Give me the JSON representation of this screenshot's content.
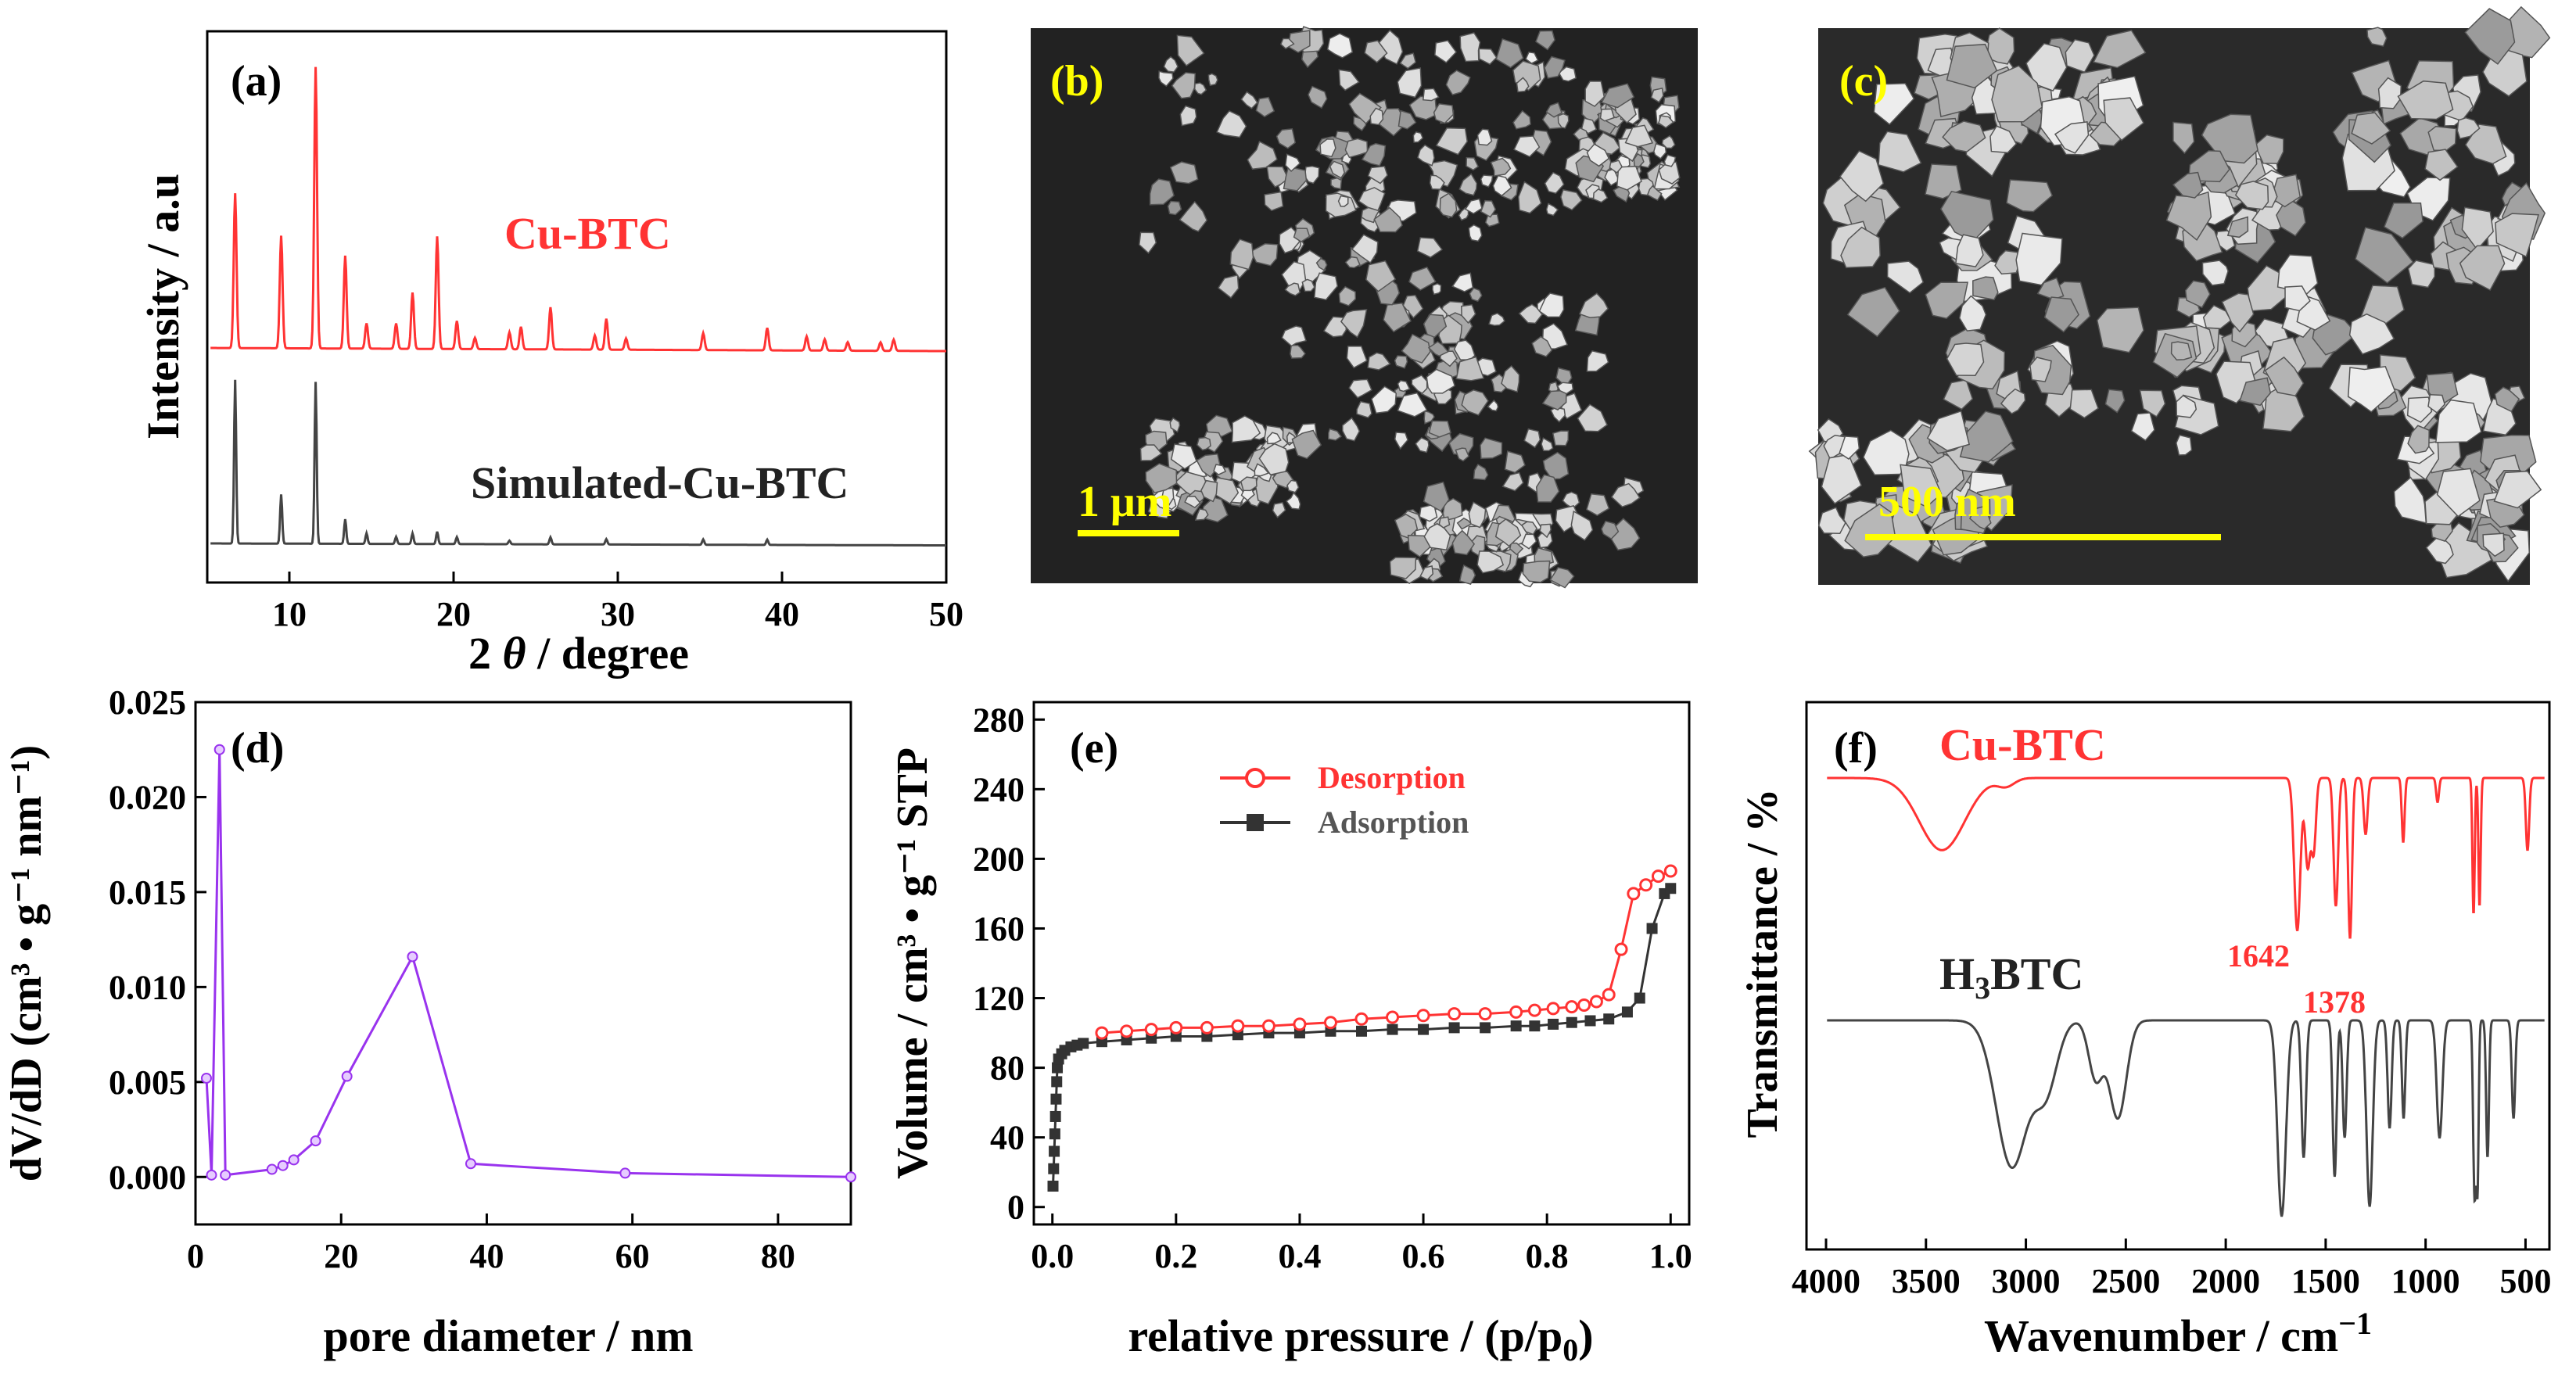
{
  "chart_data": [
    {
      "panel": "(a)",
      "type": "line",
      "xlabel_prefix": "2 ",
      "xlabel_symbol": "θ",
      "xlabel_suffix": " / degree",
      "ylabel": "Intensity / a.u",
      "xlim": [
        5,
        50
      ],
      "xticks": [
        "10",
        "20",
        "30",
        "40",
        "50"
      ],
      "series": [
        {
          "name": "Cu-BTC",
          "color": "#ff3333",
          "peaks": [
            [
              6.7,
              0.55
            ],
            [
              9.5,
              0.4
            ],
            [
              11.6,
              1.0
            ],
            [
              13.4,
              0.33
            ],
            [
              14.7,
              0.09
            ],
            [
              16.5,
              0.09
            ],
            [
              17.5,
              0.2
            ],
            [
              19.0,
              0.4
            ],
            [
              20.2,
              0.1
            ],
            [
              21.3,
              0.04
            ],
            [
              23.4,
              0.06
            ],
            [
              24.1,
              0.08
            ],
            [
              25.9,
              0.15
            ],
            [
              28.6,
              0.05
            ],
            [
              29.3,
              0.11
            ],
            [
              30.5,
              0.04
            ],
            [
              35.2,
              0.06
            ],
            [
              39.1,
              0.08
            ],
            [
              41.5,
              0.05
            ],
            [
              42.6,
              0.04
            ],
            [
              44.0,
              0.03
            ],
            [
              46.0,
              0.03
            ],
            [
              46.8,
              0.04
            ]
          ],
          "baseline": 0.0
        },
        {
          "name": "Simulated-Cu-BTC",
          "color": "#444444",
          "peaks": [
            [
              6.7,
              0.93
            ],
            [
              9.5,
              0.28
            ],
            [
              11.6,
              0.92
            ],
            [
              13.4,
              0.14
            ],
            [
              14.7,
              0.06
            ],
            [
              16.5,
              0.04
            ],
            [
              17.5,
              0.06
            ],
            [
              19.0,
              0.07
            ],
            [
              20.2,
              0.04
            ],
            [
              23.4,
              0.02
            ],
            [
              25.9,
              0.04
            ],
            [
              29.3,
              0.03
            ],
            [
              35.2,
              0.03
            ],
            [
              39.1,
              0.03
            ]
          ],
          "baseline": 0.0
        }
      ]
    },
    {
      "panel": "(d)",
      "type": "line",
      "xlabel": "pore diameter / nm",
      "ylabel": "dV/dD (cm³ • g⁻¹ nm⁻¹)",
      "xlim": [
        0,
        90
      ],
      "ylim": [
        -0.0025,
        0.025
      ],
      "xticks": [
        "0",
        "20",
        "40",
        "60",
        "80"
      ],
      "yticks": [
        "0.000",
        "0.005",
        "0.010",
        "0.015",
        "0.020",
        "0.025"
      ],
      "color": "#9933ee",
      "series": [
        {
          "name": "pore size distribution",
          "x": [
            1.5,
            2.2,
            3.3,
            4.1,
            10.5,
            12.0,
            13.5,
            16.5,
            20.8,
            29.8,
            37.8,
            59.0,
            90.0
          ],
          "y": [
            0.0052,
            0.0001,
            0.0225,
            0.0001,
            0.0004,
            0.0006,
            0.0009,
            0.0019,
            0.0053,
            0.0116,
            0.0007,
            0.0002,
            0.0
          ]
        }
      ]
    },
    {
      "panel": "(e)",
      "type": "line",
      "xlabel": "relative pressure / (p/p",
      "xlabel_sub": "0",
      "xlabel_close": ")",
      "ylabel": "Volume / cm³ • g⁻¹ STP",
      "xlim": [
        -0.03,
        1.03
      ],
      "ylim": [
        -10,
        290
      ],
      "xticks": [
        "0.0",
        "0.2",
        "0.4",
        "0.6",
        "0.8",
        "1.0"
      ],
      "yticks": [
        "0",
        "40",
        "80",
        "120",
        "160",
        "200",
        "240",
        "280"
      ],
      "series": [
        {
          "name": "Desorption",
          "color": "#ff3333",
          "x": [
            0.08,
            0.12,
            0.16,
            0.2,
            0.25,
            0.3,
            0.35,
            0.4,
            0.45,
            0.5,
            0.55,
            0.6,
            0.65,
            0.7,
            0.75,
            0.78,
            0.81,
            0.84,
            0.86,
            0.88,
            0.9,
            0.92,
            0.94,
            0.96,
            0.98,
            1.0
          ],
          "y": [
            100,
            101,
            102,
            103,
            103,
            104,
            104,
            105,
            106,
            108,
            109,
            110,
            111,
            111,
            112,
            113,
            114,
            115,
            116,
            118,
            122,
            148,
            180,
            185,
            190,
            193
          ]
        },
        {
          "name": "Adsorption",
          "color": "#333333",
          "x": [
            0.001,
            0.002,
            0.003,
            0.004,
            0.005,
            0.006,
            0.007,
            0.008,
            0.01,
            0.015,
            0.02,
            0.03,
            0.04,
            0.05,
            0.08,
            0.12,
            0.16,
            0.2,
            0.25,
            0.3,
            0.35,
            0.4,
            0.45,
            0.5,
            0.55,
            0.6,
            0.65,
            0.7,
            0.75,
            0.78,
            0.81,
            0.84,
            0.87,
            0.9,
            0.93,
            0.95,
            0.97,
            0.99,
            1.0
          ],
          "y": [
            12,
            22,
            32,
            42,
            52,
            62,
            72,
            80,
            85,
            88,
            90,
            92,
            93,
            94,
            95,
            96,
            97,
            98,
            98,
            99,
            100,
            100,
            101,
            101,
            102,
            102,
            103,
            103,
            104,
            104,
            105,
            106,
            107,
            108,
            112,
            120,
            160,
            180,
            183
          ]
        }
      ]
    },
    {
      "panel": "(f)",
      "type": "line",
      "xlabel": "Wavenumber / cm",
      "xlabel_sup": "−1",
      "ylabel": "Transmittance / %",
      "xlim": [
        4000,
        400
      ],
      "xticks": [
        "4000",
        "3500",
        "3000",
        "2500",
        "2000",
        "1500",
        "1000",
        "500"
      ],
      "series": [
        {
          "name": "Cu-BTC",
          "color": "#ff3333",
          "bands": [
            [
              3420,
              160,
              0.45
            ],
            [
              3100,
              60,
              0.05
            ],
            [
              1642,
              22,
              0.95
            ],
            [
              1590,
              18,
              0.55
            ],
            [
              1560,
              16,
              0.45
            ],
            [
              1449,
              16,
              0.8
            ],
            [
              1378,
              14,
              1.0
            ],
            [
              1300,
              14,
              0.35
            ],
            [
              1112,
              10,
              0.4
            ],
            [
              940,
              10,
              0.15
            ],
            [
              760,
              8,
              0.85
            ],
            [
              730,
              8,
              0.8
            ],
            [
              490,
              12,
              0.45
            ]
          ],
          "label_values": [
            "1642",
            "1378"
          ]
        },
        {
          "name": "H₃BTC",
          "color": "#444444",
          "bands": [
            [
              3070,
              110,
              0.75
            ],
            [
              2900,
              80,
              0.35
            ],
            [
              2650,
              50,
              0.3
            ],
            [
              2540,
              60,
              0.5
            ],
            [
              1720,
              30,
              1.0
            ],
            [
              1610,
              16,
              0.7
            ],
            [
              1455,
              14,
              0.8
            ],
            [
              1405,
              14,
              0.6
            ],
            [
              1280,
              22,
              0.95
            ],
            [
              1180,
              14,
              0.55
            ],
            [
              1110,
              12,
              0.5
            ],
            [
              930,
              20,
              0.6
            ],
            [
              755,
              10,
              0.9
            ],
            [
              740,
              8,
              0.8
            ],
            [
              690,
              10,
              0.7
            ],
            [
              560,
              12,
              0.5
            ]
          ]
        }
      ]
    }
  ],
  "panels": {
    "a": {
      "label": "(a)",
      "series1_label": "Cu-BTC",
      "series2_label": "Simulated-Cu-BTC"
    },
    "b": {
      "label": "(b)",
      "scale_bar": "1 μm"
    },
    "c": {
      "label": "(c)",
      "scale_bar": "500 nm"
    },
    "d": {
      "label": "(d)"
    },
    "e": {
      "label": "(e)",
      "legend": [
        "Desorption",
        "Adsorption"
      ]
    },
    "f": {
      "label": "(f)",
      "series1_label": "Cu-BTC",
      "series2_label_main": "H",
      "series2_label_sub": "3",
      "series2_label_rest": "BTC",
      "annot1": "1642",
      "annot2": "1378"
    }
  },
  "colors": {
    "red": "#ff3333",
    "dark": "#333333",
    "purple": "#9933ee",
    "sem_label": "#ffff00"
  }
}
